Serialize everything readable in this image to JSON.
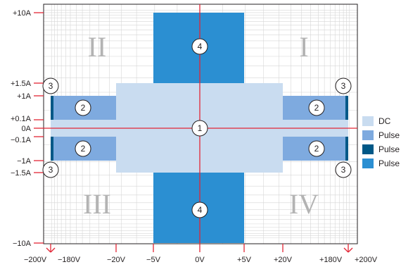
{
  "colors": {
    "dc": "#c9dcf0",
    "pulse_light": "#7eaadf",
    "pulse_dark": "#005887",
    "pulse_blue": "#2b8fd2",
    "axis_red": "#e32636",
    "grid": "#d6d6d6",
    "frame": "#231f20"
  },
  "axes": {
    "y_labels": [
      "+10A",
      "+1.5A",
      "+1A",
      "+0.1A",
      "0A",
      "−0.1A",
      "−1A",
      "−1.5A",
      "−10A"
    ],
    "x_labels": [
      "−200V",
      "−180V",
      "−20V",
      "−5V",
      "0V",
      "+5V",
      "+20V",
      "+180V",
      "+200V"
    ]
  },
  "quadrants": [
    "I",
    "II",
    "III",
    "IV"
  ],
  "markers": [
    "1",
    "2",
    "3",
    "4"
  ],
  "legend": [
    {
      "label": "DC",
      "color": "#c9dcf0"
    },
    {
      "label": "Pulse",
      "color": "#7eaadf"
    },
    {
      "label": "Pulse",
      "color": "#005887"
    },
    {
      "label": "Pulse",
      "color": "#2b8fd2"
    }
  ]
}
